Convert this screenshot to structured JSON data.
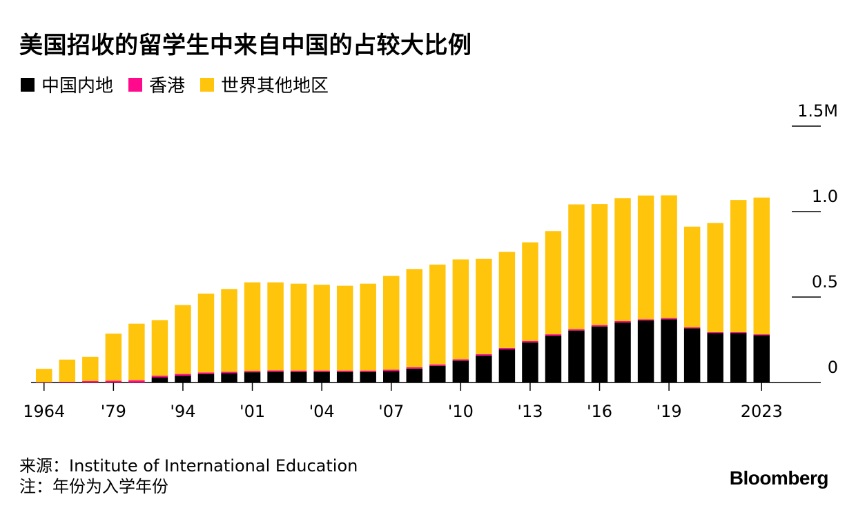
{
  "title": "美国招收的留学生中来自中国的占较大比例",
  "legend": [
    {
      "label": "中国内地",
      "color": "#000000"
    },
    {
      "label": "香港",
      "color": "#ff0a8d"
    },
    {
      "label": "世界其他地区",
      "color": "#ffc40c"
    }
  ],
  "source": "来源：Institute of International Education",
  "note": "注：年份为入学年份",
  "logo": "Bloomberg",
  "chart_data": {
    "type": "bar",
    "stacked": true,
    "title": "美国招收的留学生中来自中国的占较大比例",
    "x_tick_labels": [
      "1964",
      "'79",
      "'94",
      "'01",
      "'04",
      "'07",
      "'10",
      "'13",
      "'16",
      "'19",
      "2023"
    ],
    "y_tick_labels": [
      "0",
      "0.5",
      "1.0",
      "1.5M"
    ],
    "y_ticks": [
      0,
      0.5,
      1.0,
      1.5
    ],
    "ylim": [
      0,
      1.5
    ],
    "ylabel": "",
    "xlabel": "",
    "y_axis_side": "right",
    "categories": [
      "1964",
      "1969",
      "1974",
      "1979",
      "1984",
      "1989",
      "1994",
      "1999",
      "2000",
      "2001",
      "2002",
      "2003",
      "2004",
      "2005",
      "2006",
      "2007",
      "2008",
      "2009",
      "2010",
      "2011",
      "2012",
      "2013",
      "2014",
      "2015",
      "2016",
      "2017",
      "2018",
      "2019",
      "2020",
      "2021",
      "2022",
      "2023"
    ],
    "category_tick_map": {
      "1964": "1964",
      "1979": "'79",
      "1994": "'94",
      "2001": "'01",
      "2004": "'04",
      "2007": "'07",
      "2010": "'10",
      "2013": "'13",
      "2016": "'16",
      "2019": "'19",
      "2023": "2023"
    },
    "series": [
      {
        "name": "中国内地",
        "color": "#000000",
        "values": [
          0.0,
          0.0,
          0.0,
          0.0,
          0.0,
          0.03,
          0.04,
          0.05,
          0.055,
          0.06,
          0.063,
          0.062,
          0.062,
          0.062,
          0.062,
          0.067,
          0.081,
          0.098,
          0.128,
          0.158,
          0.194,
          0.235,
          0.274,
          0.304,
          0.328,
          0.351,
          0.363,
          0.37,
          0.317,
          0.29,
          0.29,
          0.277
        ]
      },
      {
        "name": "香港",
        "color": "#ff0a8d",
        "values": [
          0.002,
          0.004,
          0.008,
          0.01,
          0.013,
          0.01,
          0.01,
          0.009,
          0.008,
          0.008,
          0.008,
          0.008,
          0.008,
          0.008,
          0.008,
          0.008,
          0.008,
          0.008,
          0.008,
          0.008,
          0.008,
          0.008,
          0.008,
          0.008,
          0.008,
          0.008,
          0.007,
          0.007,
          0.006,
          0.005,
          0.005,
          0.005
        ]
      },
      {
        "name": "世界其他地区",
        "color": "#ffc40c",
        "values": [
          0.078,
          0.13,
          0.142,
          0.276,
          0.331,
          0.325,
          0.403,
          0.461,
          0.484,
          0.518,
          0.515,
          0.508,
          0.502,
          0.496,
          0.508,
          0.549,
          0.575,
          0.584,
          0.584,
          0.557,
          0.562,
          0.577,
          0.604,
          0.73,
          0.708,
          0.72,
          0.724,
          0.718,
          0.589,
          0.638,
          0.773,
          0.8
        ]
      }
    ]
  }
}
